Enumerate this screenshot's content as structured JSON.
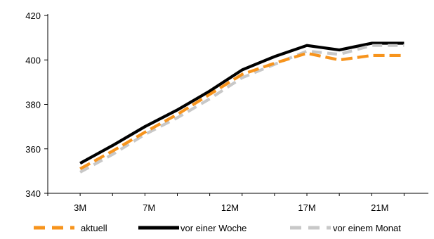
{
  "chart_data": {
    "type": "line",
    "title": "",
    "xlabel": "",
    "ylabel": "",
    "ylim": [
      340,
      420
    ],
    "y_ticks": [
      "340",
      "360",
      "380",
      "400",
      "420"
    ],
    "x_tick_labels": [
      "3M",
      "7M",
      "12M",
      "17M",
      "21M"
    ],
    "x": [
      3,
      5,
      7,
      9,
      11,
      13,
      15,
      17,
      19,
      21,
      23
    ],
    "grid": false,
    "legend_position": "bottom",
    "series": [
      {
        "name": "vor einer Woche",
        "color": "#000000",
        "style": "solid",
        "values": [
          353.5,
          361.5,
          370.0,
          377.5,
          386.0,
          395.5,
          401.5,
          406.5,
          404.5,
          407.5,
          407.5
        ]
      },
      {
        "name": "vor einem Monat",
        "color": "#c8c8c8",
        "style": "dashed",
        "values": [
          349.5,
          357.5,
          366.5,
          374.0,
          382.5,
          392.0,
          398.0,
          404.0,
          402.5,
          406.5,
          406.5
        ]
      },
      {
        "name": "aktuell",
        "color": "#f7941d",
        "style": "dashed",
        "values": [
          351.0,
          359.0,
          367.5,
          375.5,
          384.5,
          393.5,
          398.5,
          403.0,
          400.0,
          402.0,
          402.0
        ]
      }
    ],
    "legend_order": [
      "aktuell",
      "vor einer Woche",
      "vor einem Monat"
    ]
  }
}
